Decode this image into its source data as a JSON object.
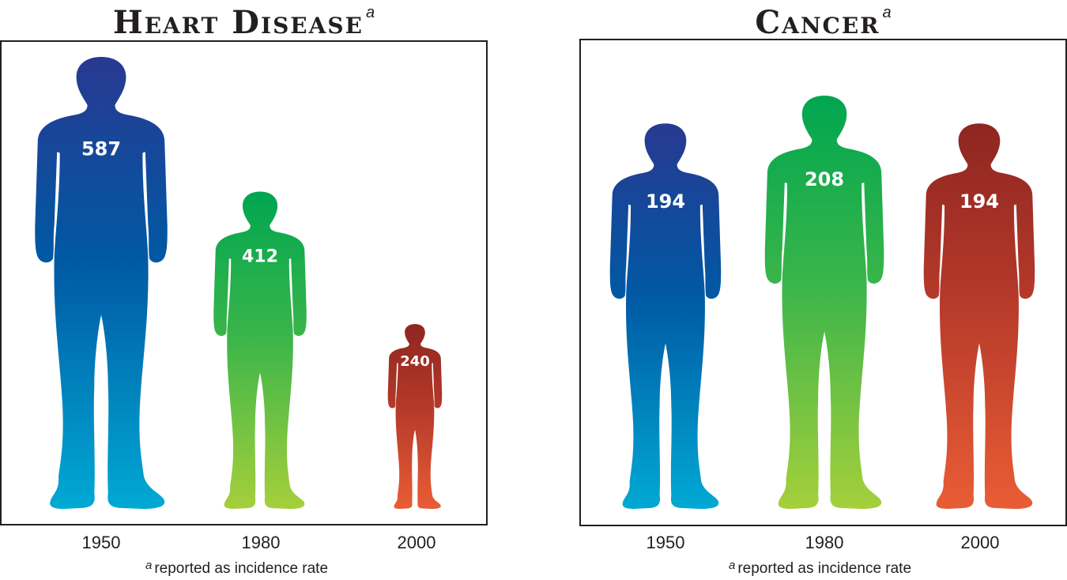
{
  "footnote_marker": "a",
  "footnote_text": "reported as incidence rate",
  "chart_data": [
    {
      "type": "bar",
      "title": "Heart Disease",
      "title_superscript": "a",
      "categories": [
        "1950",
        "1980",
        "2000"
      ],
      "values": [
        587,
        412,
        240
      ],
      "colors": [
        "#1f4ea3",
        "#3bb34a",
        "#b83428"
      ],
      "ylim": [
        0,
        587
      ],
      "grid": false
    },
    {
      "type": "bar",
      "title": "Cancer",
      "title_superscript": "a",
      "categories": [
        "1950",
        "1980",
        "2000"
      ],
      "values": [
        194,
        208,
        194
      ],
      "colors": [
        "#1f4ea3",
        "#3bb34a",
        "#b83428"
      ],
      "ylim": [
        0,
        208
      ],
      "grid": false
    }
  ]
}
